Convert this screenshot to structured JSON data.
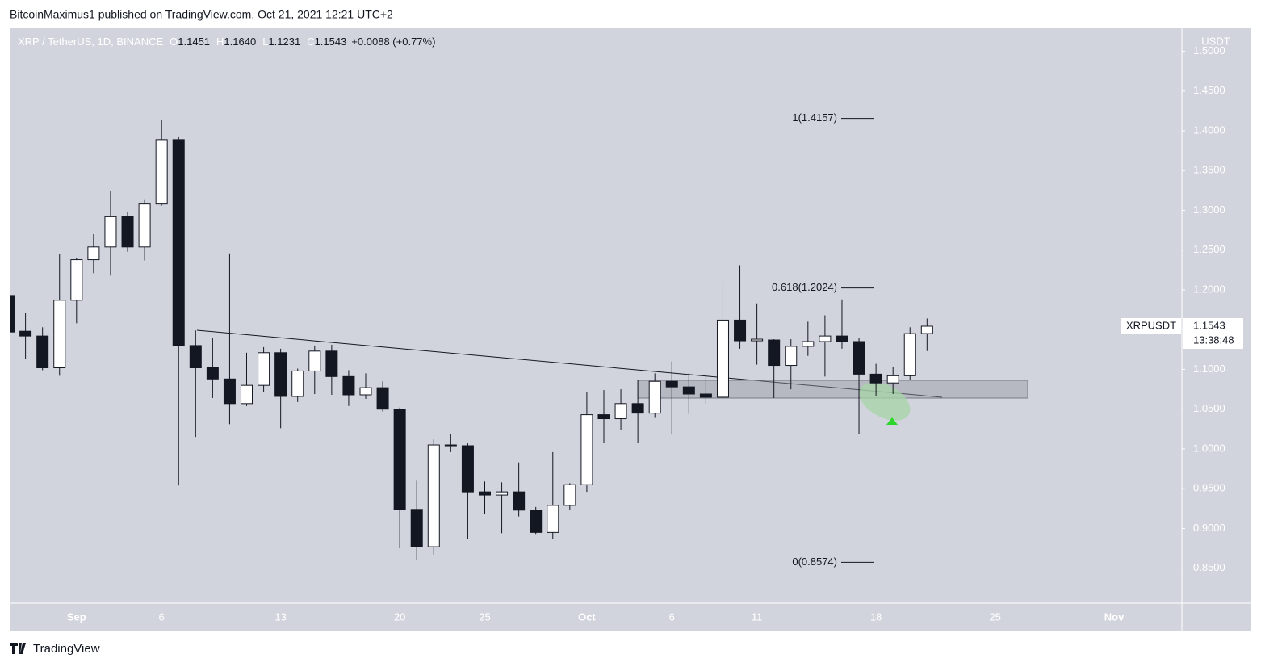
{
  "header": "BitcoinMaximus1 published on TradingView.com, Oct 21, 2021 12:21 UTC+2",
  "footer": "TradingView",
  "chart_data": {
    "type": "candlestick",
    "symbol": "XRP / TetherUS, 1D, BINANCE",
    "ohlc_legend": [
      {
        "label": "O",
        "value": "1.1451"
      },
      {
        "label": "H",
        "value": "1.1640"
      },
      {
        "label": "L",
        "value": "1.1231"
      },
      {
        "label": "C",
        "value": "1.1543"
      }
    ],
    "change": "+0.0088 (+0.77%)",
    "y_axis_label": "USDT",
    "categories": [
      null,
      null,
      null,
      null,
      "Sep",
      null,
      null,
      null,
      null,
      "6",
      null,
      null,
      null,
      null,
      null,
      null,
      "13",
      null,
      null,
      null,
      null,
      null,
      null,
      "20",
      null,
      null,
      null,
      null,
      "25",
      null,
      null,
      null,
      null,
      null,
      "Oct",
      null,
      null,
      null,
      null,
      "6",
      null,
      null,
      null,
      null,
      "11",
      null,
      null,
      null,
      null,
      null,
      null,
      "18",
      null,
      null,
      null,
      null,
      null,
      null,
      "25",
      null,
      null,
      null,
      null,
      null,
      null,
      "Nov",
      null,
      null,
      null,
      null
    ],
    "open": [
      1.193,
      1.148,
      1.142,
      1.102,
      1.187,
      1.238,
      1.254,
      1.292,
      1.254,
      1.308,
      1.389,
      1.13,
      1.102,
      1.088,
      1.057,
      1.08,
      1.121,
      1.066,
      1.098,
      1.123,
      1.091,
      1.068,
      1.077,
      1.05,
      0.924,
      0.877,
      1.005,
      1.004,
      0.946,
      0.942,
      0.946,
      0.923,
      0.895,
      0.929,
      0.955,
      1.043,
      1.038,
      1.057,
      1.045,
      1.085,
      1.078,
      1.069,
      1.065,
      1.162,
      1.136,
      1.137,
      1.105,
      1.129,
      1.135,
      1.142,
      1.135,
      1.094,
      1.083,
      1.092,
      1.1451,
      null,
      null,
      null,
      null,
      null,
      null,
      null,
      null,
      null,
      null,
      null,
      null,
      null,
      null,
      null
    ],
    "high": [
      1.193,
      1.171,
      1.153,
      1.245,
      1.24,
      1.27,
      1.324,
      1.298,
      1.313,
      1.414,
      1.392,
      1.149,
      1.139,
      1.246,
      1.121,
      1.128,
      1.126,
      1.101,
      1.13,
      1.131,
      1.099,
      1.095,
      1.085,
      1.052,
      0.96,
      1.012,
      1.019,
      1.007,
      0.959,
      0.958,
      0.983,
      0.927,
      0.996,
      0.957,
      1.071,
      1.074,
      1.075,
      1.087,
      1.095,
      1.11,
      1.095,
      1.094,
      1.21,
      1.231,
      1.183,
      1.138,
      1.138,
      1.16,
      1.168,
      1.188,
      1.14,
      1.107,
      1.103,
      1.153,
      1.164,
      null,
      null,
      null,
      null,
      null,
      null,
      null,
      null,
      null,
      null,
      null,
      null,
      null,
      null,
      null
    ],
    "low": [
      1.147,
      1.113,
      1.099,
      1.092,
      1.158,
      1.221,
      1.218,
      1.248,
      1.237,
      1.306,
      0.954,
      1.015,
      1.064,
      1.031,
      1.054,
      1.072,
      1.026,
      1.059,
      1.069,
      1.068,
      1.054,
      1.063,
      1.047,
      0.875,
      0.861,
      0.867,
      0.996,
      0.887,
      0.918,
      0.894,
      0.915,
      0.893,
      0.887,
      0.923,
      0.946,
      1.008,
      1.024,
      1.008,
      1.039,
      1.018,
      1.044,
      1.057,
      1.06,
      1.126,
      1.106,
      1.064,
      1.075,
      1.117,
      1.091,
      1.126,
      1.019,
      1.067,
      1.069,
      1.087,
      1.1231,
      null,
      null,
      null,
      null,
      null,
      null,
      null,
      null,
      null,
      null,
      null,
      null,
      null,
      null,
      null
    ],
    "close": [
      1.147,
      1.142,
      1.102,
      1.187,
      1.238,
      1.254,
      1.292,
      1.254,
      1.308,
      1.389,
      1.13,
      1.102,
      1.088,
      1.057,
      1.08,
      1.121,
      1.066,
      1.098,
      1.123,
      1.091,
      1.068,
      1.077,
      1.05,
      0.924,
      0.877,
      1.005,
      1.004,
      0.946,
      0.942,
      0.946,
      0.923,
      0.895,
      0.929,
      0.955,
      1.043,
      1.038,
      1.057,
      1.045,
      1.085,
      1.078,
      1.069,
      1.065,
      1.162,
      1.136,
      1.138,
      1.105,
      1.129,
      1.135,
      1.142,
      1.135,
      1.094,
      1.083,
      1.092,
      1.145,
      1.1543,
      null,
      null,
      null,
      null,
      null,
      null,
      null,
      null,
      null,
      null,
      null,
      null,
      null,
      null,
      null
    ],
    "up_color": "#ffffff",
    "down_color": "#131722",
    "ylim": [
      0.806,
      1.529
    ],
    "yticks": [
      {
        "value": 1.5,
        "label": "1.5000"
      },
      {
        "value": 1.45,
        "label": "1.4500"
      },
      {
        "value": 1.4,
        "label": "1.4000"
      },
      {
        "value": 1.35,
        "label": "1.3500"
      },
      {
        "value": 1.3,
        "label": "1.3000"
      },
      {
        "value": 1.25,
        "label": "1.2500"
      },
      {
        "value": 1.2,
        "label": "1.2000"
      },
      {
        "value": 1.15,
        "label": "1.1500"
      },
      {
        "value": 1.1,
        "label": "1.1000"
      },
      {
        "value": 1.05,
        "label": "1.0500"
      },
      {
        "value": 1,
        "label": "1.0000"
      },
      {
        "value": 0.95,
        "label": "0.9500"
      },
      {
        "value": 0.9,
        "label": "0.9000"
      },
      {
        "value": 0.85,
        "label": "0.8500"
      }
    ],
    "grid": false,
    "fib_levels": [
      {
        "value": 1.4157,
        "label": "1(1.4157)"
      },
      {
        "value": 1.2024,
        "label": "0.618(1.2024)"
      },
      {
        "value": 0.8574,
        "label": "0(0.8574)"
      }
    ],
    "price_tag": {
      "symbol": "XRPUSDT",
      "price": 1.1543,
      "countdown": "13:38:48"
    }
  }
}
